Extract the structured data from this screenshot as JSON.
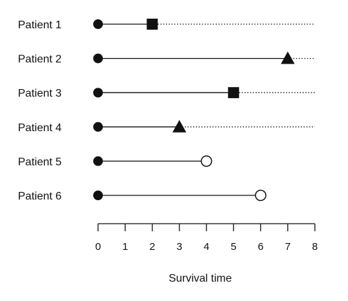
{
  "chart_data": {
    "type": "scatter",
    "title": "",
    "xlabel": "Survival time",
    "ylabel": "",
    "xlim": [
      0,
      8
    ],
    "xticks": [
      "0",
      "1",
      "2",
      "3",
      "4",
      "5",
      "6",
      "7",
      "8"
    ],
    "grid": false,
    "legend": "none",
    "colors": {
      "ink": "#111111",
      "background": "#ffffff"
    },
    "patients": [
      {
        "label": "Patient 1",
        "start": 0,
        "event_time": 2,
        "event_marker": "square",
        "followup_end": 8
      },
      {
        "label": "Patient 2",
        "start": 0,
        "event_time": 7,
        "event_marker": "triangle",
        "followup_end": 8
      },
      {
        "label": "Patient 3",
        "start": 0,
        "event_time": 5,
        "event_marker": "square",
        "followup_end": 8
      },
      {
        "label": "Patient 4",
        "start": 0,
        "event_time": 3,
        "event_marker": "triangle",
        "followup_end": 8
      },
      {
        "label": "Patient 5",
        "start": 0,
        "event_time": 4,
        "event_marker": "open-circle",
        "followup_end": null
      },
      {
        "label": "Patient 6",
        "start": 0,
        "event_time": 6,
        "event_marker": "open-circle",
        "followup_end": null
      }
    ]
  }
}
